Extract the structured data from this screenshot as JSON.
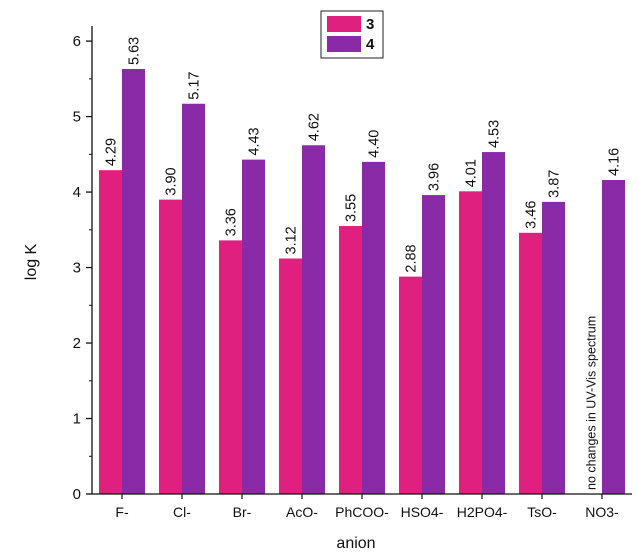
{
  "chart_data": {
    "type": "bar",
    "xlabel": "anion",
    "ylabel": "log K",
    "ylim": [
      0,
      6.2
    ],
    "yticks": [
      0,
      1,
      2,
      3,
      4,
      5,
      6
    ],
    "categories": [
      "F-",
      "Cl-",
      "Br-",
      "AcO-",
      "PhCOO-",
      "HSO4-",
      "H2PO4-",
      "TsO-",
      "NO3-"
    ],
    "series": [
      {
        "name": "3",
        "color": "#e0207e",
        "values": [
          4.29,
          3.9,
          3.36,
          3.12,
          3.55,
          2.88,
          4.01,
          3.46,
          null
        ],
        "labels": [
          "4.29",
          "3.90",
          "3.36",
          "3.12",
          "3.55",
          "2.88",
          "4.01",
          "3.46",
          ""
        ]
      },
      {
        "name": "4",
        "color": "#8b2aa6",
        "values": [
          5.63,
          5.17,
          4.43,
          4.62,
          4.4,
          3.96,
          4.53,
          3.87,
          4.16
        ],
        "labels": [
          "5.63",
          "5.17",
          "4.43",
          "4.62",
          "4.40",
          "3.96",
          "4.53",
          "3.87",
          "4.16"
        ]
      }
    ],
    "annotation": {
      "category": "NO3-",
      "text": "no changes in UV-Vis spectrum"
    },
    "legend": "top-center",
    "grid": false
  }
}
